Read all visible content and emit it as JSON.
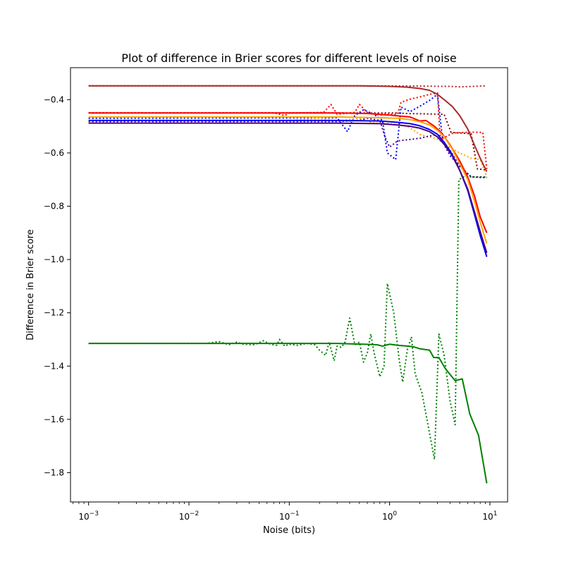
{
  "chart_data": {
    "type": "line",
    "title": "Plot of difference in Brier scores for different levels of noise",
    "xlabel": "Noise (bits)",
    "ylabel": "Difference in Brier score",
    "xscale": "log",
    "xlim": [
      0.00066,
      15
    ],
    "ylim": [
      -1.91,
      -0.28
    ],
    "xticks": [
      {
        "value": 0.001,
        "base": "10",
        "exp": "−3"
      },
      {
        "value": 0.01,
        "base": "10",
        "exp": "−2"
      },
      {
        "value": 0.1,
        "base": "10",
        "exp": "−1"
      },
      {
        "value": 1,
        "base": "10",
        "exp": "0"
      },
      {
        "value": 10,
        "base": "10",
        "exp": "1"
      }
    ],
    "yticks": [
      {
        "value": -0.4,
        "label": "−0.4"
      },
      {
        "value": -0.6,
        "label": "−0.6"
      },
      {
        "value": -0.8,
        "label": "−0.8"
      },
      {
        "value": -1.0,
        "label": "−1.0"
      },
      {
        "value": -1.2,
        "label": "−1.2"
      },
      {
        "value": -1.4,
        "label": "−1.4"
      },
      {
        "value": -1.6,
        "label": "−1.6"
      },
      {
        "value": -1.8,
        "label": "−1.8"
      }
    ],
    "grid": false,
    "legend": "none",
    "series": [
      {
        "color": "#b22222",
        "style": "dotted",
        "points": [
          [
            0.001,
            -0.348
          ],
          [
            0.3,
            -0.348
          ],
          [
            1,
            -0.348
          ],
          [
            2,
            -0.349
          ],
          [
            3,
            -0.35
          ],
          [
            4,
            -0.35
          ],
          [
            5,
            -0.352
          ],
          [
            6,
            -0.351
          ],
          [
            7,
            -0.35
          ],
          [
            8,
            -0.349
          ],
          [
            9.3,
            -0.348
          ]
        ]
      },
      {
        "color": "#800000",
        "style": "dotted",
        "points": [
          [
            0.001,
            -0.449
          ],
          [
            1.2,
            -0.45
          ],
          [
            1.5,
            -0.452
          ],
          [
            3.5,
            -0.455
          ],
          [
            4.1,
            -0.523
          ],
          [
            5,
            -0.525
          ],
          [
            6.5,
            -0.528
          ],
          [
            7.5,
            -0.66
          ],
          [
            8.5,
            -0.662
          ],
          [
            9.3,
            -0.665
          ]
        ]
      },
      {
        "color": "#ff0000",
        "style": "dotted",
        "points": [
          [
            0.001,
            -0.45
          ],
          [
            0.07,
            -0.449
          ],
          [
            0.09,
            -0.46
          ],
          [
            0.1,
            -0.45
          ],
          [
            0.22,
            -0.448
          ],
          [
            0.26,
            -0.418
          ],
          [
            0.3,
            -0.455
          ],
          [
            0.45,
            -0.448
          ],
          [
            0.5,
            -0.418
          ],
          [
            0.6,
            -0.448
          ],
          [
            0.8,
            -0.458
          ],
          [
            0.9,
            -0.455
          ],
          [
            1.2,
            -0.455
          ],
          [
            1.3,
            -0.41
          ],
          [
            1.6,
            -0.398
          ],
          [
            2,
            -0.39
          ],
          [
            2.5,
            -0.38
          ],
          [
            3,
            -0.375
          ],
          [
            3.2,
            -0.55
          ],
          [
            4.3,
            -0.525
          ],
          [
            5.5,
            -0.523
          ],
          [
            7,
            -0.522
          ],
          [
            8.5,
            -0.523
          ],
          [
            9.3,
            -0.66
          ]
        ]
      },
      {
        "color": "#0000ff",
        "style": "dotted",
        "points": [
          [
            0.001,
            -0.47
          ],
          [
            0.3,
            -0.468
          ],
          [
            0.38,
            -0.52
          ],
          [
            0.45,
            -0.46
          ],
          [
            0.55,
            -0.438
          ],
          [
            0.7,
            -0.455
          ],
          [
            0.85,
            -0.478
          ],
          [
            0.95,
            -0.6
          ],
          [
            1.15,
            -0.625
          ],
          [
            1.3,
            -0.428
          ],
          [
            1.6,
            -0.445
          ],
          [
            2,
            -0.425
          ],
          [
            2.5,
            -0.403
          ],
          [
            3,
            -0.38
          ],
          [
            3.4,
            -0.56
          ],
          [
            4,
            -0.61
          ],
          [
            5,
            -0.65
          ],
          [
            6.5,
            -0.69
          ],
          [
            8,
            -0.69
          ],
          [
            9.3,
            -0.692
          ]
        ]
      },
      {
        "color": "#ffa500",
        "style": "dotted",
        "points": [
          [
            0.001,
            -0.478
          ],
          [
            0.1,
            -0.478
          ],
          [
            0.2,
            -0.47
          ],
          [
            0.3,
            -0.48
          ],
          [
            0.5,
            -0.47
          ],
          [
            0.7,
            -0.488
          ],
          [
            1,
            -0.49
          ],
          [
            1.5,
            -0.5
          ],
          [
            2,
            -0.53
          ],
          [
            2.5,
            -0.54
          ],
          [
            3,
            -0.548
          ],
          [
            4,
            -0.58
          ],
          [
            5,
            -0.6
          ],
          [
            6.5,
            -0.62
          ],
          [
            8,
            -0.625
          ],
          [
            9.3,
            -0.69
          ]
        ]
      },
      {
        "color": "#4b0082",
        "style": "dotted",
        "points": [
          [
            0.001,
            -0.482
          ],
          [
            0.3,
            -0.482
          ],
          [
            0.5,
            -0.478
          ],
          [
            0.6,
            -0.47
          ],
          [
            0.8,
            -0.478
          ],
          [
            0.9,
            -0.54
          ],
          [
            1,
            -0.578
          ],
          [
            1.2,
            -0.555
          ],
          [
            2,
            -0.545
          ],
          [
            3,
            -0.53
          ],
          [
            4,
            -0.59
          ],
          [
            5,
            -0.65
          ],
          [
            6.5,
            -0.69
          ],
          [
            8,
            -0.692
          ],
          [
            9.3,
            -0.692
          ]
        ]
      },
      {
        "color": "#008000",
        "style": "dotted",
        "points": [
          [
            0.001,
            -1.315
          ],
          [
            0.015,
            -1.315
          ],
          [
            0.02,
            -1.308
          ],
          [
            0.025,
            -1.32
          ],
          [
            0.03,
            -1.31
          ],
          [
            0.035,
            -1.318
          ],
          [
            0.045,
            -1.32
          ],
          [
            0.055,
            -1.305
          ],
          [
            0.065,
            -1.318
          ],
          [
            0.075,
            -1.322
          ],
          [
            0.08,
            -1.3
          ],
          [
            0.09,
            -1.325
          ],
          [
            0.1,
            -1.318
          ],
          [
            0.12,
            -1.322
          ],
          [
            0.15,
            -1.315
          ],
          [
            0.18,
            -1.32
          ],
          [
            0.2,
            -1.34
          ],
          [
            0.23,
            -1.36
          ],
          [
            0.25,
            -1.31
          ],
          [
            0.28,
            -1.38
          ],
          [
            0.3,
            -1.325
          ],
          [
            0.33,
            -1.33
          ],
          [
            0.36,
            -1.31
          ],
          [
            0.4,
            -1.22
          ],
          [
            0.45,
            -1.32
          ],
          [
            0.5,
            -1.31
          ],
          [
            0.55,
            -1.385
          ],
          [
            0.6,
            -1.35
          ],
          [
            0.65,
            -1.28
          ],
          [
            0.7,
            -1.35
          ],
          [
            0.8,
            -1.44
          ],
          [
            0.88,
            -1.4
          ],
          [
            0.95,
            -1.09
          ],
          [
            1.1,
            -1.2
          ],
          [
            1.25,
            -1.38
          ],
          [
            1.35,
            -1.46
          ],
          [
            1.5,
            -1.34
          ],
          [
            1.65,
            -1.29
          ],
          [
            1.8,
            -1.43
          ],
          [
            2.1,
            -1.5
          ],
          [
            2.8,
            -1.75
          ],
          [
            3.1,
            -1.28
          ],
          [
            3.5,
            -1.36
          ],
          [
            4,
            -1.53
          ],
          [
            4.5,
            -1.62
          ],
          [
            4.9,
            -0.7
          ],
          [
            5.5,
            -0.69
          ],
          [
            6.5,
            -0.69
          ],
          [
            8,
            -0.69
          ],
          [
            9.3,
            -0.69
          ]
        ]
      },
      {
        "color": "#a52a2a",
        "style": "solid",
        "points": [
          [
            0.001,
            -0.348
          ],
          [
            0.2,
            -0.348
          ],
          [
            0.5,
            -0.348
          ],
          [
            1,
            -0.35
          ],
          [
            1.5,
            -0.353
          ],
          [
            2,
            -0.358
          ],
          [
            2.5,
            -0.365
          ],
          [
            3,
            -0.38
          ],
          [
            3.5,
            -0.4
          ],
          [
            4.2,
            -0.425
          ],
          [
            5,
            -0.46
          ],
          [
            6,
            -0.51
          ],
          [
            7,
            -0.57
          ],
          [
            8,
            -0.62
          ],
          [
            9.3,
            -0.67
          ]
        ]
      },
      {
        "color": "#ff0000",
        "style": "solid",
        "points": [
          [
            0.001,
            -0.45
          ],
          [
            0.3,
            -0.45
          ],
          [
            0.6,
            -0.452
          ],
          [
            1,
            -0.458
          ],
          [
            1.3,
            -0.462
          ],
          [
            1.6,
            -0.465
          ],
          [
            2,
            -0.48
          ],
          [
            2.3,
            -0.478
          ],
          [
            2.8,
            -0.5
          ],
          [
            3.3,
            -0.525
          ],
          [
            4,
            -0.57
          ],
          [
            5,
            -0.63
          ],
          [
            6,
            -0.69
          ],
          [
            7,
            -0.76
          ],
          [
            8,
            -0.84
          ],
          [
            9.3,
            -0.9
          ]
        ]
      },
      {
        "color": "#ffa500",
        "style": "solid",
        "points": [
          [
            0.001,
            -0.465
          ],
          [
            0.3,
            -0.465
          ],
          [
            0.8,
            -0.468
          ],
          [
            1.2,
            -0.47
          ],
          [
            1.6,
            -0.475
          ],
          [
            2,
            -0.483
          ],
          [
            2.5,
            -0.495
          ],
          [
            3,
            -0.515
          ],
          [
            3.5,
            -0.54
          ],
          [
            4.2,
            -0.585
          ],
          [
            5,
            -0.64
          ],
          [
            6,
            -0.7
          ],
          [
            7,
            -0.78
          ],
          [
            8,
            -0.86
          ],
          [
            9.3,
            -0.94
          ]
        ]
      },
      {
        "color": "#0000ff",
        "style": "solid",
        "points": [
          [
            0.001,
            -0.478
          ],
          [
            0.3,
            -0.478
          ],
          [
            0.8,
            -0.48
          ],
          [
            1.2,
            -0.485
          ],
          [
            1.6,
            -0.49
          ],
          [
            2,
            -0.498
          ],
          [
            2.5,
            -0.512
          ],
          [
            3,
            -0.53
          ],
          [
            3.5,
            -0.56
          ],
          [
            4.2,
            -0.605
          ],
          [
            5,
            -0.665
          ],
          [
            6,
            -0.74
          ],
          [
            7,
            -0.83
          ],
          [
            8,
            -0.91
          ],
          [
            9.3,
            -0.99
          ]
        ]
      },
      {
        "color": "#4b0082",
        "style": "solid",
        "points": [
          [
            0.001,
            -0.488
          ],
          [
            0.3,
            -0.488
          ],
          [
            0.8,
            -0.49
          ],
          [
            1.2,
            -0.495
          ],
          [
            1.6,
            -0.5
          ],
          [
            2,
            -0.507
          ],
          [
            2.5,
            -0.52
          ],
          [
            3,
            -0.54
          ],
          [
            3.5,
            -0.568
          ],
          [
            4.2,
            -0.61
          ],
          [
            5,
            -0.665
          ],
          [
            6,
            -0.735
          ],
          [
            7,
            -0.82
          ],
          [
            8,
            -0.895
          ],
          [
            9.3,
            -0.975
          ]
        ]
      },
      {
        "color": "#008000",
        "style": "solid",
        "points": [
          [
            0.001,
            -1.315
          ],
          [
            0.1,
            -1.315
          ],
          [
            0.3,
            -1.315
          ],
          [
            0.55,
            -1.318
          ],
          [
            0.75,
            -1.32
          ],
          [
            0.85,
            -1.325
          ],
          [
            1,
            -1.318
          ],
          [
            1.2,
            -1.322
          ],
          [
            1.5,
            -1.325
          ],
          [
            1.75,
            -1.328
          ],
          [
            2,
            -1.335
          ],
          [
            2.5,
            -1.34
          ],
          [
            2.75,
            -1.368
          ],
          [
            3.1,
            -1.368
          ],
          [
            3.6,
            -1.41
          ],
          [
            4.5,
            -1.455
          ],
          [
            5.3,
            -1.448
          ],
          [
            6.3,
            -1.58
          ],
          [
            7.7,
            -1.66
          ],
          [
            9.3,
            -1.84
          ]
        ]
      }
    ]
  }
}
